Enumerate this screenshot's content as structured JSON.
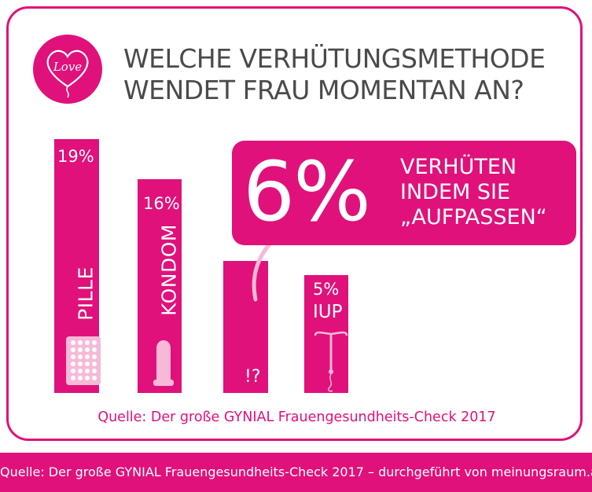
{
  "title": {
    "line1": "WELCHE VERHÜTUNGSMETHODE",
    "line2": "WENDET FRAU MOMENTAN AN?"
  },
  "logo": {
    "text": "Love"
  },
  "chart_data": {
    "type": "bar",
    "categories": [
      "PILLE",
      "KONDOM",
      "Aufpassen",
      "IUP"
    ],
    "values": [
      19,
      16,
      6,
      5
    ],
    "value_labels": [
      "19%",
      "16%",
      "",
      "5%"
    ],
    "bar_labels": [
      "PILLE",
      "KONDOM",
      "!?",
      "IUP"
    ],
    "icons": [
      "pill-pack-icon",
      "condom-icon",
      "question-exclamation-icon",
      "iud-icon"
    ],
    "ylim": [
      0,
      19
    ],
    "grid": false,
    "legend": "none",
    "color": "#e0117a"
  },
  "callout": {
    "pct": "6%",
    "line1": "VERHÜTEN",
    "line2": "INDEM SIE",
    "line3": "„AUFPASSEN“"
  },
  "source": "Quelle: Der große GYNIAL Frauengesundheits-Check 2017",
  "footer": "Quelle: Der große GYNIAL Frauengesundheits-Check 2017 – durchgeführt von meinungsraum.at",
  "colors": {
    "accent": "#e0117a",
    "text": "#4a4a4a",
    "icon_fill": "#f7b9d7"
  }
}
